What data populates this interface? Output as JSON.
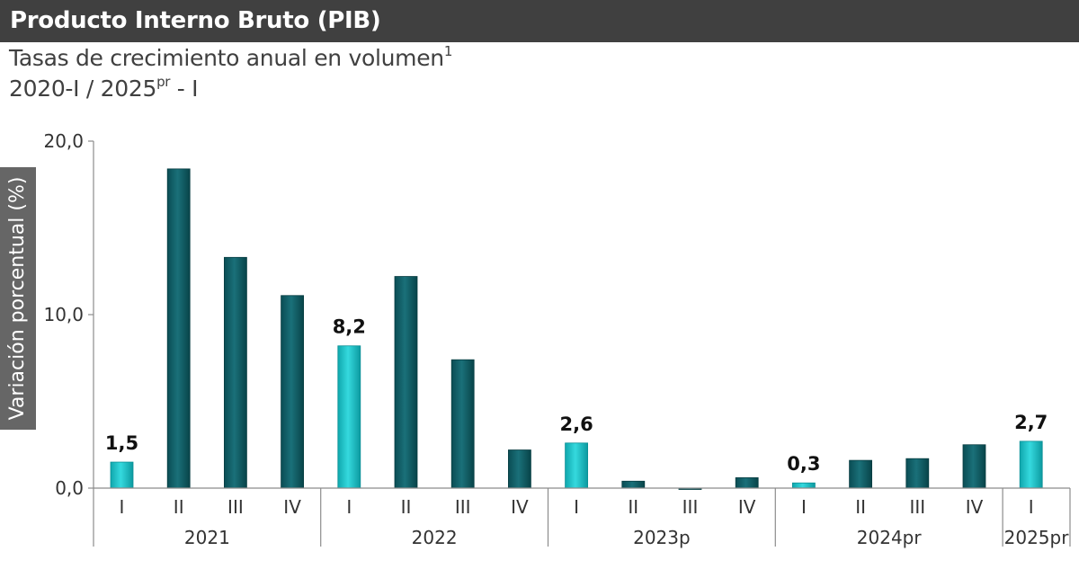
{
  "header": {
    "title": "Producto Interno Bruto (PIB)"
  },
  "subtitle": {
    "line1": "Tasas de crecimiento anual en volumen",
    "line1_sup": "1",
    "line2_pre": "2020-I / 2025",
    "line2_sup": "pr",
    "line2_post": " - I"
  },
  "colors": {
    "header_bg": "#404040",
    "highlight_bar": "#1cc3c8",
    "regular_bar": "#0f5f67",
    "ylabel_bg": "#666666"
  },
  "chart_data": {
    "type": "bar",
    "ylabel": "Variación porcentual (%)",
    "ylim": [
      0,
      20
    ],
    "yticks": [
      "0,0",
      "10,0",
      "20,0"
    ],
    "grid": false,
    "categories": [
      "I",
      "II",
      "III",
      "IV",
      "I",
      "II",
      "III",
      "IV",
      "I",
      "II",
      "III",
      "IV",
      "I",
      "II",
      "III",
      "IV",
      "I"
    ],
    "values": [
      1.5,
      18.4,
      13.3,
      11.1,
      8.2,
      12.2,
      7.4,
      2.2,
      2.6,
      0.4,
      -0.05,
      0.6,
      0.3,
      1.6,
      1.7,
      2.5,
      2.7
    ],
    "highlight": [
      true,
      false,
      false,
      false,
      true,
      false,
      false,
      false,
      true,
      false,
      false,
      false,
      true,
      false,
      false,
      false,
      true
    ],
    "data_labels": [
      "1,5",
      "",
      "",
      "",
      "8,2",
      "",
      "",
      "",
      "2,6",
      "",
      "",
      "",
      "0,3",
      "",
      "",
      "",
      "2,7"
    ],
    "groups": [
      {
        "label": "2021",
        "count": 4
      },
      {
        "label": "2022",
        "count": 4
      },
      {
        "label": "2023p",
        "count": 4
      },
      {
        "label": "2024pr",
        "count": 4
      },
      {
        "label": "2025pr",
        "count": 1
      }
    ]
  }
}
